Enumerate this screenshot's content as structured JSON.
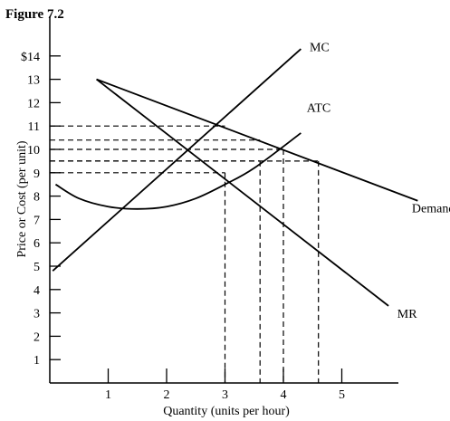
{
  "figure_title": "Figure 7.2",
  "chart_data": {
    "type": "line",
    "title": "Figure 7.2",
    "xlabel": "Quantity (units per hour)",
    "ylabel": "Price or Cost (per unit)",
    "xlim": [
      0,
      6.2
    ],
    "ylim": [
      0,
      15
    ],
    "x_ticks": [
      1,
      2,
      3,
      4,
      5
    ],
    "y_ticks": [
      1,
      2,
      3,
      4,
      5,
      6,
      7,
      8,
      9,
      10,
      11,
      12,
      13,
      14
    ],
    "y_tick_labels": [
      "1",
      "2",
      "3",
      "4",
      "5",
      "6",
      "7",
      "8",
      "9",
      "10",
      "11",
      "12",
      "13",
      "$14"
    ],
    "series": [
      {
        "name": "Demand",
        "x": [
          0.8,
          6.3
        ],
        "y": [
          13,
          7.8
        ],
        "label_anchor": [
          6.2,
          7.3
        ]
      },
      {
        "name": "MR",
        "x": [
          0.8,
          5.8
        ],
        "y": [
          13,
          3.3
        ],
        "label_anchor": [
          5.95,
          2.8
        ]
      },
      {
        "name": "MC",
        "x": [
          0.05,
          4.3
        ],
        "y": [
          4.8,
          14.3
        ],
        "label_anchor": [
          4.45,
          14.2
        ]
      },
      {
        "name": "ATC",
        "x": [
          0.1,
          0.5,
          1.0,
          1.5,
          2.0,
          2.5,
          3.0,
          3.5,
          4.3
        ],
        "y": [
          8.5,
          7.9,
          7.55,
          7.45,
          7.55,
          7.9,
          8.5,
          9.2,
          10.7
        ],
        "label_anchor": [
          4.4,
          11.6
        ]
      }
    ],
    "guides": [
      {
        "x": 3.0,
        "y": 9.0
      },
      {
        "x": 3.6,
        "y": 9.5
      },
      {
        "x": 4.0,
        "y": 10.0
      },
      {
        "x": 4.6,
        "y": 9.5
      },
      {
        "y": 11.0,
        "x_end": 3.0
      },
      {
        "y": 10.4,
        "x_end": 3.6
      }
    ]
  }
}
